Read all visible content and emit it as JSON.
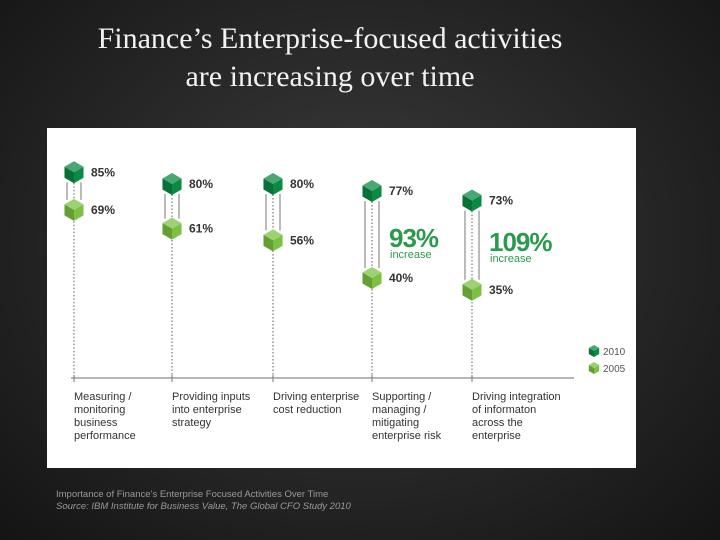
{
  "slide": {
    "title_line1": "Finance’s Enterprise-focused activities",
    "title_line2": "are increasing over time"
  },
  "colors": {
    "dark_green": "#0b8a43",
    "light_green": "#7cc142",
    "accent_green": "#2c9a4e",
    "axis_gray": "#8a8a8a",
    "text_dark": "#333333"
  },
  "chart_data": {
    "type": "scatter",
    "subtype": "dumbbell",
    "title": "Importance of Finance’s Enterprise Focused Activities Over Time",
    "source": "Source: IBM Institute for Business Value, The Global CFO Study 2010",
    "ylim": [
      0,
      100
    ],
    "unit": "%",
    "categories": [
      [
        "Measuring /",
        "monitoring",
        "business",
        "performance"
      ],
      [
        "Providing inputs",
        "into enterprise",
        "strategy"
      ],
      [
        "Driving enterprise",
        "cost reduction"
      ],
      [
        "Supporting /",
        "managing /",
        "mitigating",
        "enterprise risk"
      ],
      [
        "Driving integration",
        "of informaton",
        "across the",
        "enterprise"
      ]
    ],
    "series": [
      {
        "name": "2010",
        "values": [
          85,
          80,
          80,
          77,
          73
        ],
        "labels": [
          "85%",
          "80%",
          "80%",
          "77%",
          "73%"
        ]
      },
      {
        "name": "2005",
        "values": [
          69,
          61,
          56,
          40,
          35
        ],
        "labels": [
          "69%",
          "61%",
          "56%",
          "40%",
          "35%"
        ]
      }
    ],
    "legend": [
      "2010",
      "2005"
    ],
    "legend_position": "right",
    "annotations": [
      {
        "index": 3,
        "value": "93%",
        "word": "increase"
      },
      {
        "index": 4,
        "value": "109%",
        "word": "increase"
      }
    ]
  }
}
